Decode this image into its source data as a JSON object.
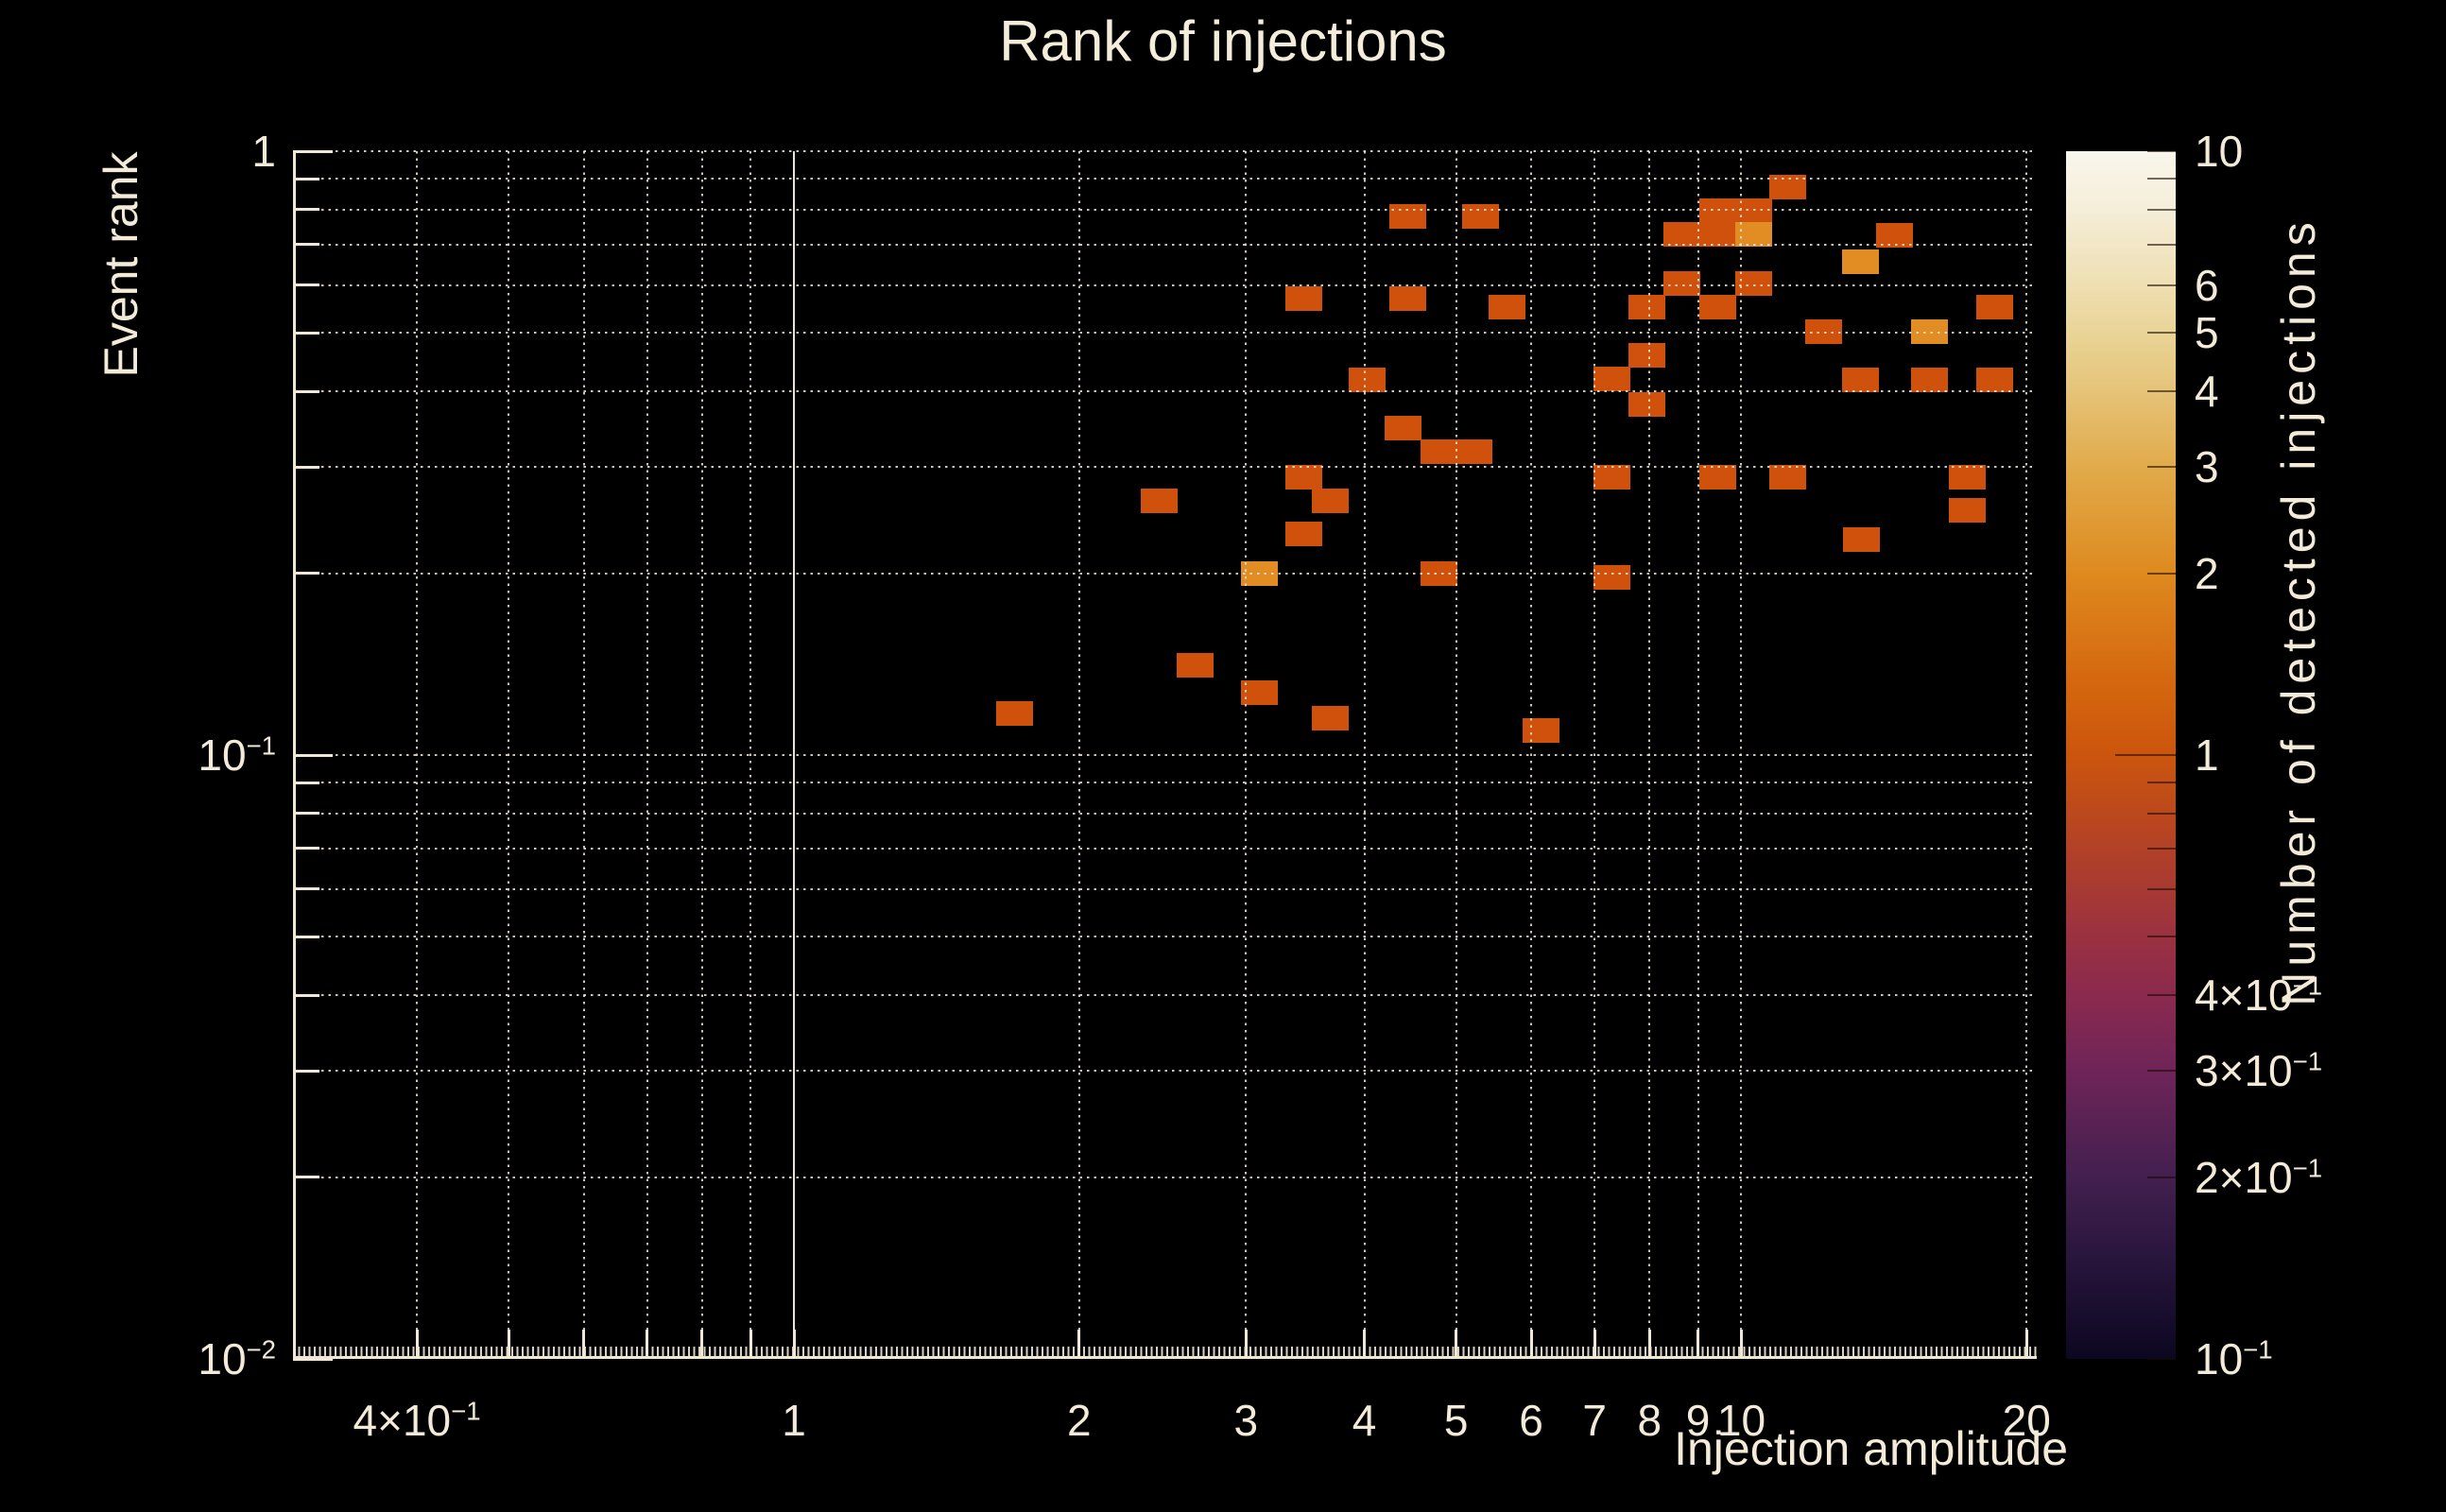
{
  "page": {
    "background": "#000000",
    "text_color": "#f3ead7"
  },
  "chart_data": {
    "type": "heatmap",
    "title": "Rank of injections",
    "xlabel": "Injection amplitude",
    "ylabel": "Event rank",
    "zlabel": "Number of detected injections",
    "xscale": "log",
    "yscale": "log",
    "zscale": "log",
    "xlim": [
      0.296,
      20.5
    ],
    "ylim": [
      0.01,
      1.0
    ],
    "zlim": [
      0.1,
      10
    ],
    "grid": true,
    "x_ticks": [
      {
        "v": 0.4,
        "t": "4×10",
        "s": "−1"
      },
      {
        "v": 1,
        "t": "1"
      },
      {
        "v": 2,
        "t": "2"
      },
      {
        "v": 3,
        "t": "3"
      },
      {
        "v": 4,
        "t": "4"
      },
      {
        "v": 5,
        "t": "5"
      },
      {
        "v": 6,
        "t": "6"
      },
      {
        "v": 7,
        "t": "7"
      },
      {
        "v": 8,
        "t": "8"
      },
      {
        "v": 9,
        "t": "9"
      },
      {
        "v": 10,
        "t": "10"
      },
      {
        "v": 20,
        "t": "20"
      }
    ],
    "y_ticks": [
      {
        "v": 1,
        "t": "1"
      },
      {
        "v": 0.1,
        "t": "10",
        "s": "−1"
      },
      {
        "v": 0.01,
        "t": "10",
        "s": "−2"
      }
    ],
    "z_ticks": [
      {
        "v": 10,
        "t": "10"
      },
      {
        "v": 9
      },
      {
        "v": 8
      },
      {
        "v": 7
      },
      {
        "v": 6,
        "t": "6"
      },
      {
        "v": 5,
        "t": "5"
      },
      {
        "v": 4,
        "t": "4"
      },
      {
        "v": 3,
        "t": "3"
      },
      {
        "v": 2,
        "t": "2"
      },
      {
        "v": 1,
        "t": "1",
        "major": true
      },
      {
        "v": 0.9
      },
      {
        "v": 0.8
      },
      {
        "v": 0.7
      },
      {
        "v": 0.6
      },
      {
        "v": 0.5
      },
      {
        "v": 0.4,
        "t": "4×10",
        "s": "−1"
      },
      {
        "v": 0.3,
        "t": "3×10",
        "s": "−1"
      },
      {
        "v": 0.2,
        "t": "2×10",
        "s": "−1"
      },
      {
        "v": 0.1,
        "t": "10",
        "s": "−1"
      }
    ],
    "grid_x": [
      0.4,
      0.5,
      0.6,
      0.7,
      0.8,
      0.9,
      1,
      2,
      3,
      4,
      5,
      6,
      7,
      8,
      9,
      10,
      20
    ],
    "grid_x_solid": [
      1
    ],
    "grid_y": [
      1,
      0.9,
      0.8,
      0.7,
      0.6,
      0.5,
      0.4,
      0.3,
      0.2,
      0.1,
      0.09,
      0.08,
      0.07,
      0.06,
      0.05,
      0.04,
      0.03,
      0.02
    ],
    "x_bin_decades": 0.0389,
    "y_bin_decades": 0.0407,
    "cell_colors": {
      "1": "#d0510b",
      "2": "#e18d24"
    },
    "colormap_stops": [
      [
        0.0,
        "#f9f6ec"
      ],
      [
        0.048,
        "#f5eed9"
      ],
      [
        0.111,
        "#eedfb2"
      ],
      [
        0.155,
        "#e9d394"
      ],
      [
        0.199,
        "#e5c378"
      ],
      [
        0.261,
        "#e1ab4b"
      ],
      [
        0.349,
        "#de8a1f"
      ],
      [
        0.437,
        "#d5680f"
      ],
      [
        0.5,
        "#cc550d"
      ],
      [
        0.577,
        "#b24127"
      ],
      [
        0.651,
        "#9a3141"
      ],
      [
        0.699,
        "#8b2a4e"
      ],
      [
        0.761,
        "#6f2458"
      ],
      [
        0.849,
        "#43204f"
      ],
      [
        0.912,
        "#2a163e"
      ],
      [
        1.0,
        "#0c0720"
      ]
    ],
    "cells": [
      {
        "x": 1.71,
        "y": 0.117,
        "n": 1
      },
      {
        "x": 2.43,
        "y": 0.264,
        "n": 1
      },
      {
        "x": 2.65,
        "y": 0.141,
        "n": 1
      },
      {
        "x": 3.1,
        "y": 0.127,
        "n": 1
      },
      {
        "x": 3.1,
        "y": 0.2,
        "n": 2
      },
      {
        "x": 3.45,
        "y": 0.288,
        "n": 1
      },
      {
        "x": 3.45,
        "y": 0.232,
        "n": 1
      },
      {
        "x": 3.45,
        "y": 0.57,
        "n": 1
      },
      {
        "x": 3.68,
        "y": 0.264,
        "n": 1
      },
      {
        "x": 3.68,
        "y": 0.115,
        "n": 1
      },
      {
        "x": 4.03,
        "y": 0.418,
        "n": 1
      },
      {
        "x": 4.39,
        "y": 0.348,
        "n": 1
      },
      {
        "x": 4.45,
        "y": 0.57,
        "n": 1
      },
      {
        "x": 4.45,
        "y": 0.78,
        "n": 1
      },
      {
        "x": 4.79,
        "y": 0.318,
        "n": 1
      },
      {
        "x": 4.79,
        "y": 0.2,
        "n": 1
      },
      {
        "x": 5.22,
        "y": 0.318,
        "n": 1
      },
      {
        "x": 5.3,
        "y": 0.78,
        "n": 1
      },
      {
        "x": 5.66,
        "y": 0.552,
        "n": 1
      },
      {
        "x": 6.15,
        "y": 0.11,
        "n": 1
      },
      {
        "x": 7.3,
        "y": 0.42,
        "n": 1
      },
      {
        "x": 7.3,
        "y": 0.288,
        "n": 1
      },
      {
        "x": 7.3,
        "y": 0.197,
        "n": 1
      },
      {
        "x": 7.95,
        "y": 0.552,
        "n": 1
      },
      {
        "x": 7.95,
        "y": 0.459,
        "n": 1
      },
      {
        "x": 7.95,
        "y": 0.381,
        "n": 1
      },
      {
        "x": 8.65,
        "y": 0.728,
        "n": 1
      },
      {
        "x": 8.65,
        "y": 0.604,
        "n": 1
      },
      {
        "x": 9.45,
        "y": 0.797,
        "n": 1
      },
      {
        "x": 9.45,
        "y": 0.728,
        "n": 1
      },
      {
        "x": 9.45,
        "y": 0.552,
        "n": 1
      },
      {
        "x": 9.45,
        "y": 0.288,
        "n": 1
      },
      {
        "x": 10.3,
        "y": 0.797,
        "n": 1
      },
      {
        "x": 10.3,
        "y": 0.728,
        "n": 2
      },
      {
        "x": 10.3,
        "y": 0.604,
        "n": 1
      },
      {
        "x": 11.2,
        "y": 0.872,
        "n": 1
      },
      {
        "x": 11.2,
        "y": 0.288,
        "n": 1
      },
      {
        "x": 12.2,
        "y": 0.503,
        "n": 1
      },
      {
        "x": 13.35,
        "y": 0.656,
        "n": 2
      },
      {
        "x": 13.35,
        "y": 0.418,
        "n": 1
      },
      {
        "x": 13.4,
        "y": 0.227,
        "n": 1
      },
      {
        "x": 14.5,
        "y": 0.725,
        "n": 1
      },
      {
        "x": 15.8,
        "y": 0.503,
        "n": 2
      },
      {
        "x": 15.8,
        "y": 0.418,
        "n": 1
      },
      {
        "x": 17.3,
        "y": 0.288,
        "n": 1
      },
      {
        "x": 17.3,
        "y": 0.254,
        "n": 1
      },
      {
        "x": 18.5,
        "y": 0.552,
        "n": 1
      },
      {
        "x": 18.5,
        "y": 0.418,
        "n": 1
      }
    ]
  }
}
